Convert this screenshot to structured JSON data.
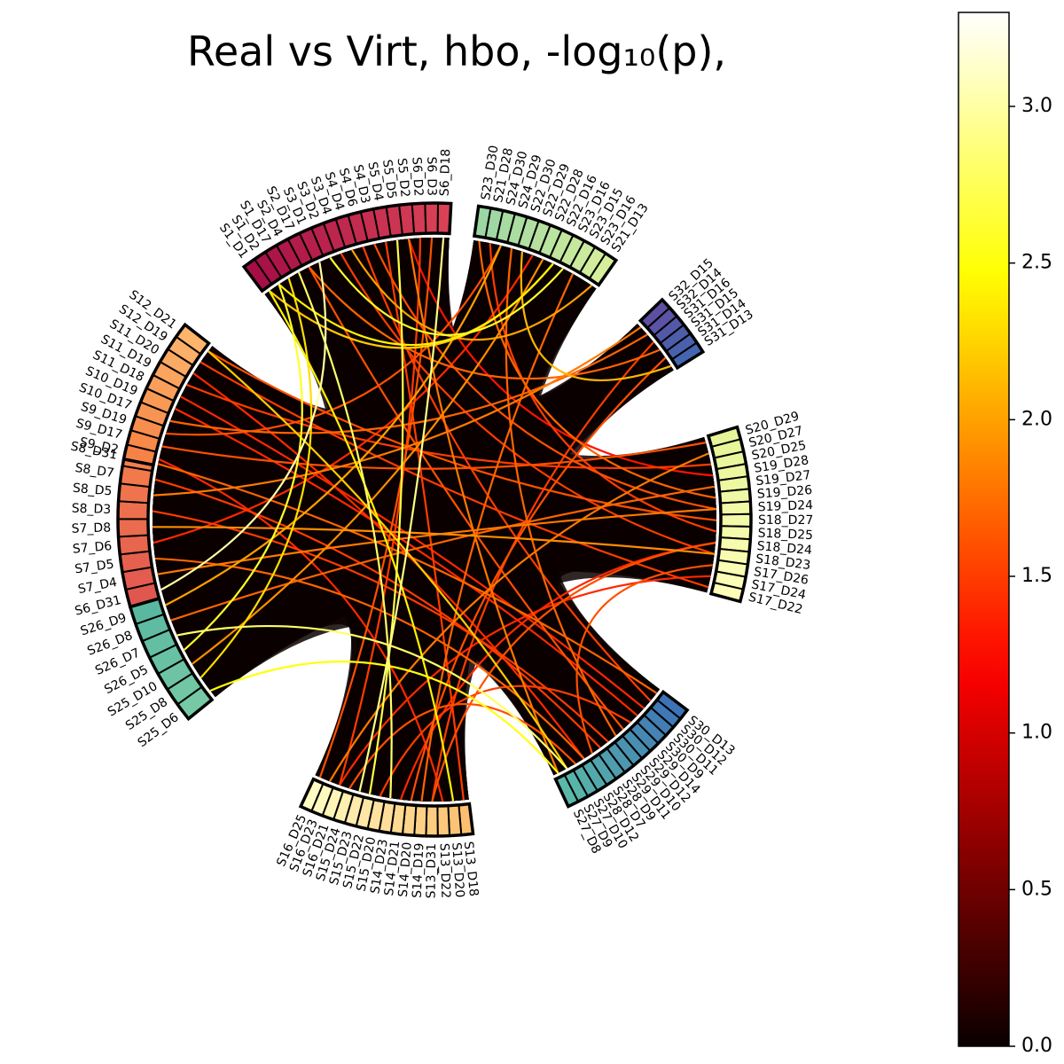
{
  "chart_data": {
    "type": "chord",
    "title": "Real vs Virt, hbo, -log₁₀(p),",
    "colorbar": {
      "colormap": "hot",
      "range": [
        0.0,
        3.3
      ],
      "ticks": [
        0.0,
        0.5,
        1.0,
        1.5,
        2.0,
        2.5,
        3.0
      ],
      "tick_labels": [
        "0.0",
        "0.5",
        "1.0",
        "1.5",
        "2.0",
        "2.5",
        "3.0"
      ]
    },
    "background_connection_color": "#0a0000",
    "groups": [
      {
        "name": "G1",
        "color_start": "#a50f46",
        "color_end": "#d94256",
        "start_angle": 87,
        "end_angle": 127,
        "labels": [
          "S1_D1",
          "S1_D2",
          "S1_D17",
          "S2_D4",
          "S2_D17",
          "S3_D1",
          "S3_D2",
          "S3_D4",
          "S4_D4",
          "S4_D6",
          "S4_D3",
          "S5_D4",
          "S5_D5",
          "S5_D2",
          "S6_D2",
          "S6_D3",
          "S6_D18"
        ]
      },
      {
        "name": "G2",
        "color_start": "#9bd6a4",
        "color_end": "#d6ef9b",
        "start_angle": 55,
        "end_angle": 82,
        "labels": [
          "S23_D30",
          "S21_D28",
          "S24_D30",
          "S24_D29",
          "S22_D30",
          "S22_D29",
          "S22_D28",
          "S22_D16",
          "S23_D16",
          "S23_D15",
          "S23_D16",
          "S21_D13"
        ]
      },
      {
        "name": "G3",
        "color_start": "#5e4fa2",
        "color_end": "#4466b0",
        "start_angle": 32,
        "end_angle": 44,
        "labels": [
          "S32_D15",
          "S32_D14",
          "S31_D16",
          "S31_D15",
          "S31_D14",
          "S31_D13"
        ]
      },
      {
        "name": "G4",
        "color_start": "#e6f598",
        "color_end": "#fefeb8",
        "start_angle": -15,
        "end_angle": 17,
        "labels": [
          "S20_D29",
          "S20_D27",
          "S20_D25",
          "S19_D28",
          "S19_D27",
          "S19_D26",
          "S19_D24",
          "S18_D27",
          "S18_D25",
          "S18_D24",
          "S18_D23",
          "S17_D26",
          "S17_D24",
          "S17_D22"
        ]
      },
      {
        "name": "G5",
        "color_start": "#3d73b6",
        "color_end": "#5ab8a8",
        "start_angle": -65,
        "end_angle": -37,
        "labels": [
          "S30_D13",
          "S30_D12",
          "S30_D11",
          "S30_D9",
          "S29_D14",
          "S29_D12",
          "S29_D10",
          "S29_D11",
          "S28_D9",
          "S28_D7",
          "S28_D12",
          "S27_D10",
          "S27_D9",
          "S27_D8"
        ]
      },
      {
        "name": "G6",
        "color_start": "#fdbf6f",
        "color_end": "#fffdc4",
        "start_angle": -115,
        "end_angle": -83,
        "labels": [
          "S13_D18",
          "S13_D20",
          "S13_D22",
          "S13_D31",
          "S14_D19",
          "S14_D20",
          "S14_D21",
          "S14_D23",
          "S15_D20",
          "S15_D22",
          "S15_D23",
          "S15_D24",
          "S16_D21",
          "S16_D23",
          "S16_D25"
        ]
      },
      {
        "name": "G7",
        "color_start": "#e0574f",
        "color_end": "#f47e4c",
        "start_angle": 167,
        "end_angle": 196,
        "labels": [
          "S6_D31",
          "S7_D4",
          "S7_D5",
          "S7_D6",
          "S7_D8",
          "S8_D3",
          "S8_D5",
          "S8_D7",
          "S8_D31"
        ]
      },
      {
        "name": "G8",
        "color_start": "#76c9a5",
        "color_end": "#5ab8a0",
        "start_angle": 196,
        "end_angle": 219,
        "labels": [
          "S25_D6",
          "S25_D8",
          "S25_D10",
          "S26_D5",
          "S26_D7",
          "S26_D8",
          "S26_D9"
        ]
      },
      {
        "name": "G9",
        "color_start": "#f68345",
        "color_end": "#fdb56c",
        "start_angle": 142,
        "end_angle": 169,
        "labels": [
          "S9_D2",
          "S9_D17",
          "S9_D19",
          "S10_D17",
          "S10_D19",
          "S11_D18",
          "S11_D19",
          "S11_D20",
          "S12_D19",
          "S12_D21"
        ]
      }
    ],
    "connections": [
      {
        "source": "S1_D1",
        "target": "S13_D20",
        "value": 2.4
      },
      {
        "source": "S1_D2",
        "target": "S26_D5",
        "value": 2.6
      },
      {
        "source": "S1_D17",
        "target": "S25_D8",
        "value": 2.3
      },
      {
        "source": "S2_D4",
        "target": "S14_D23",
        "value": 2.8
      },
      {
        "source": "S5_D5",
        "target": "S15_D22",
        "value": 2.7
      },
      {
        "source": "S6_D18",
        "target": "S15_D23",
        "value": 2.9
      },
      {
        "source": "S6_D31",
        "target": "S3_D1",
        "value": 3.0
      },
      {
        "source": "S23_D30",
        "target": "S19_D26",
        "value": 1.7
      },
      {
        "source": "S21_D28",
        "target": "S18_D25",
        "value": 1.5
      },
      {
        "source": "S24_D30",
        "target": "S9_D19",
        "value": 1.6
      },
      {
        "source": "S22_D29",
        "target": "S7_D6",
        "value": 1.4
      },
      {
        "source": "S22_D16",
        "target": "S1_D1",
        "value": 2.2
      },
      {
        "source": "S23_D16",
        "target": "S3_D2",
        "value": 2.6
      },
      {
        "source": "S21_D13",
        "target": "S4_D4",
        "value": 2.0
      },
      {
        "source": "S32_D15",
        "target": "S8_D5",
        "value": 1.8
      },
      {
        "source": "S32_D14",
        "target": "S10_D17",
        "value": 1.7
      },
      {
        "source": "S31_D16",
        "target": "S13_D31",
        "value": 1.5
      },
      {
        "source": "S31_D13",
        "target": "S22_D30",
        "value": 2.1
      },
      {
        "source": "S20_D29",
        "target": "S9_D17",
        "value": 1.6
      },
      {
        "source": "S20_D25",
        "target": "S11_D19",
        "value": 1.5
      },
      {
        "source": "S19_D28",
        "target": "S5_D2",
        "value": 1.3
      },
      {
        "source": "S19_D27",
        "target": "S26_D8",
        "value": 1.7
      },
      {
        "source": "S19_D24",
        "target": "S7_D4",
        "value": 1.8
      },
      {
        "source": "S18_D27",
        "target": "S12_D21",
        "value": 1.6
      },
      {
        "source": "S18_D24",
        "target": "S14_D21",
        "value": 1.4
      },
      {
        "source": "S18_D23",
        "target": "S7_D8",
        "value": 1.9
      },
      {
        "source": "S17_D26",
        "target": "S28_D7",
        "value": 1.6
      },
      {
        "source": "S17_D22",
        "target": "S12_D19",
        "value": 1.5
      },
      {
        "source": "S30_D13",
        "target": "S8_D31",
        "value": 1.7
      },
      {
        "source": "S30_D12",
        "target": "S4_D6",
        "value": 1.5
      },
      {
        "source": "S30_D9",
        "target": "S10_D19",
        "value": 1.4
      },
      {
        "source": "S29_D12",
        "target": "S2_D17",
        "value": 1.6
      },
      {
        "source": "S29_D10",
        "target": "S24_D29",
        "value": 1.7
      },
      {
        "source": "S28_D9",
        "target": "S8_D7",
        "value": 1.5
      },
      {
        "source": "S28_D12",
        "target": "S11_D20",
        "value": 1.4
      },
      {
        "source": "S27_D9",
        "target": "S26_D7",
        "value": 2.8
      },
      {
        "source": "S27_D8",
        "target": "S25_D6",
        "value": 2.5
      },
      {
        "source": "S27_D10",
        "target": "S15_D24",
        "value": 1.6
      },
      {
        "source": "S13_D18",
        "target": "S5_D4",
        "value": 1.5
      },
      {
        "source": "S13_D22",
        "target": "S9_D2",
        "value": 1.4
      },
      {
        "source": "S14_D19",
        "target": "S23_D15",
        "value": 1.7
      },
      {
        "source": "S14_D20",
        "target": "S31_D14",
        "value": 1.6
      },
      {
        "source": "S15_D20",
        "target": "S29_D14",
        "value": 1.5
      },
      {
        "source": "S16_D21",
        "target": "S17_D24",
        "value": 1.4
      },
      {
        "source": "S16_D23",
        "target": "S20_D27",
        "value": 1.8
      },
      {
        "source": "S16_D25",
        "target": "S6_D3",
        "value": 1.6
      },
      {
        "source": "S8_D3",
        "target": "S29_D11",
        "value": 1.5
      },
      {
        "source": "S7_D5",
        "target": "S28_D12",
        "value": 1.7
      },
      {
        "source": "S25_D10",
        "target": "S22_D28",
        "value": 1.9
      },
      {
        "source": "S26_D9",
        "target": "S24_D30",
        "value": 2.0
      },
      {
        "source": "S11_D18",
        "target": "S30_D11",
        "value": 1.4
      },
      {
        "source": "S3_D4",
        "target": "S18_D23",
        "value": 1.5
      },
      {
        "source": "S4_D3",
        "target": "S19_D24",
        "value": 1.6
      },
      {
        "source": "S2_D17",
        "target": "S31_D15",
        "value": 1.7
      },
      {
        "source": "S1_D2",
        "target": "S22_D16",
        "value": 2.4
      },
      {
        "source": "S5_D2",
        "target": "S27_D8",
        "value": 1.8
      },
      {
        "source": "S6_D2",
        "target": "S16_D21",
        "value": 1.5
      },
      {
        "source": "S12_D21",
        "target": "S27_D9",
        "value": 2.2
      },
      {
        "source": "S13_D31",
        "target": "S18_D24",
        "value": 1.6
      }
    ]
  }
}
